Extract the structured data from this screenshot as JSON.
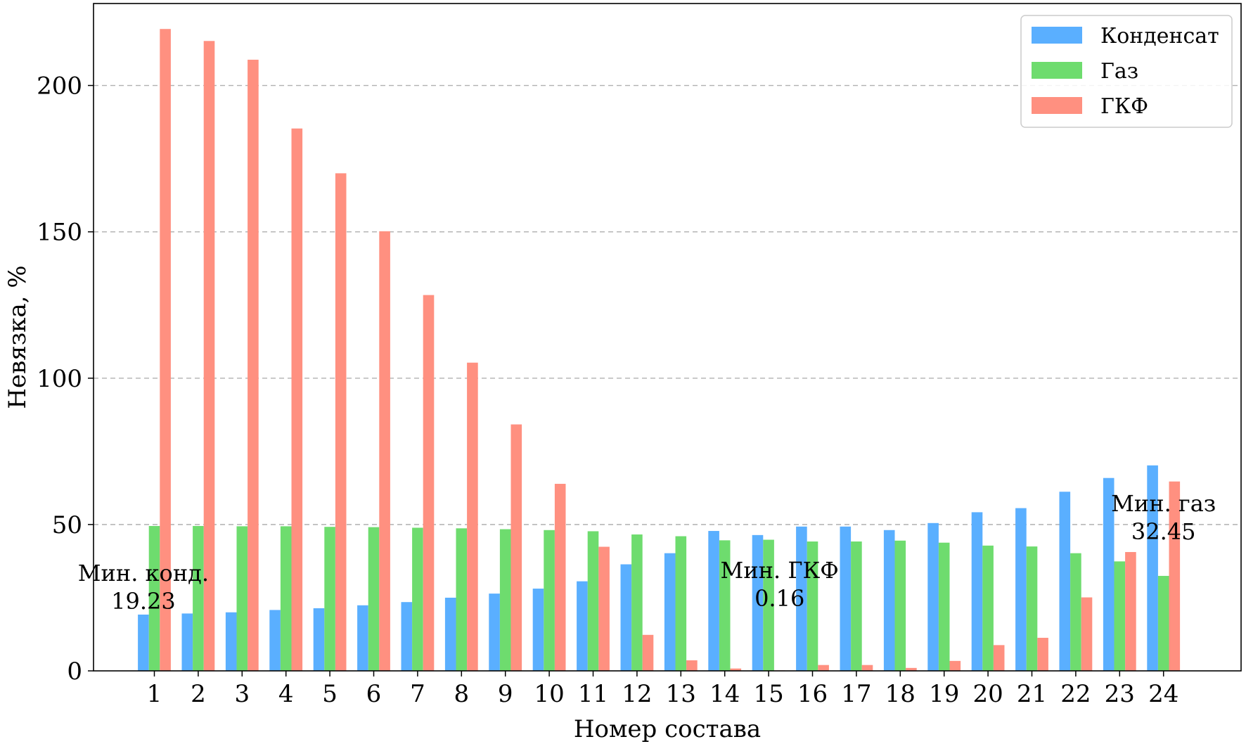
{
  "chart_data": {
    "type": "bar",
    "xlabel": "Номер состава",
    "ylabel": "Невязка, %",
    "ylim": [
      0,
      228
    ],
    "yticks": [
      0,
      50,
      100,
      150,
      200
    ],
    "grid": "y-dashed",
    "legend_position": "top-right",
    "categories": [
      "1",
      "2",
      "3",
      "4",
      "5",
      "6",
      "7",
      "8",
      "9",
      "10",
      "11",
      "12",
      "13",
      "14",
      "15",
      "16",
      "17",
      "18",
      "19",
      "20",
      "21",
      "22",
      "23",
      "24"
    ],
    "series": [
      {
        "name": "Конденсат",
        "color": "#5aafff",
        "values": [
          19.23,
          19.6,
          20.0,
          20.8,
          21.4,
          22.4,
          23.5,
          25.0,
          26.4,
          28.1,
          30.6,
          36.4,
          40.2,
          47.8,
          46.4,
          49.3,
          49.3,
          48.1,
          50.5,
          54.2,
          55.6,
          61.2,
          65.9,
          70.2
        ]
      },
      {
        "name": "Газ",
        "color": "#6edc6e",
        "values": [
          49.5,
          49.5,
          49.4,
          49.4,
          49.2,
          49.1,
          48.9,
          48.7,
          48.4,
          48.1,
          47.7,
          46.6,
          46.0,
          44.6,
          44.8,
          44.2,
          44.2,
          44.5,
          43.8,
          42.8,
          42.5,
          40.2,
          37.4,
          32.45
        ]
      },
      {
        "name": "ГКФ",
        "color": "#ff9080",
        "values": [
          219.3,
          215.2,
          208.8,
          185.3,
          170.0,
          150.2,
          128.4,
          105.3,
          84.2,
          63.9,
          42.4,
          12.3,
          3.6,
          0.8,
          0.16,
          2.0,
          2.0,
          1.0,
          3.4,
          8.8,
          11.3,
          25.1,
          40.6,
          64.7
        ]
      }
    ],
    "annotations": [
      {
        "lines": [
          "Мин. конд.",
          "19.23"
        ],
        "category": "1",
        "series": 0
      },
      {
        "lines": [
          "Мин. ГКФ",
          "0.16"
        ],
        "category": "15",
        "series": 2
      },
      {
        "lines": [
          "Мин. газ",
          "32.45"
        ],
        "category": "24",
        "series": 1
      }
    ]
  }
}
